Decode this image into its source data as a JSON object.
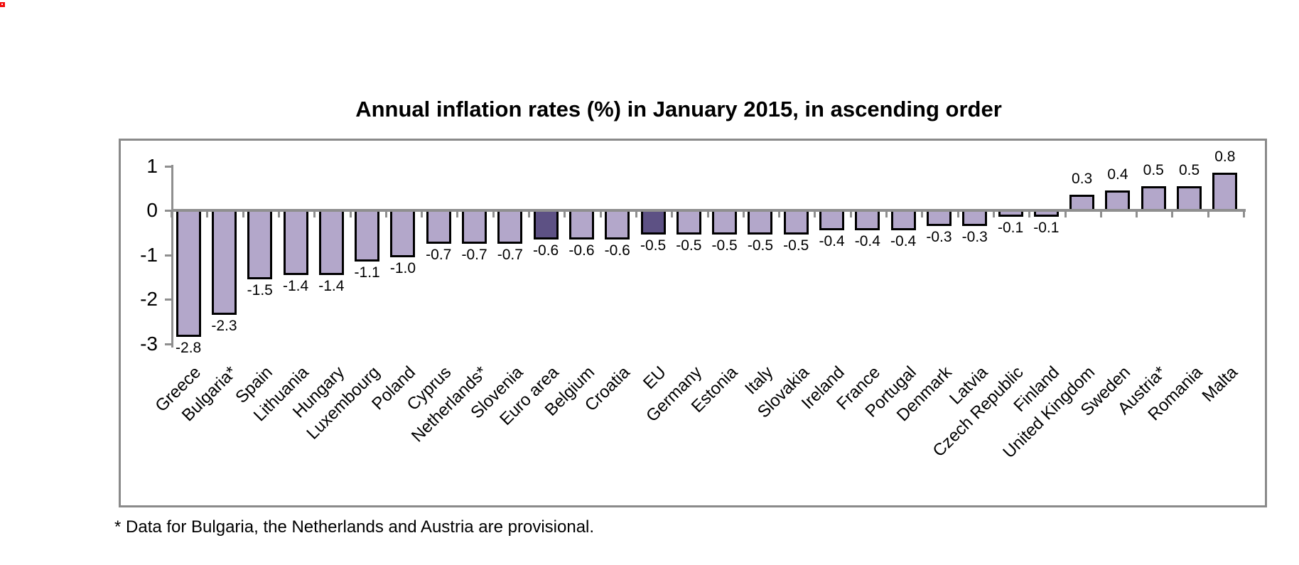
{
  "page": {
    "title": "Annual inflation rates (%) in January 2015, in ascending order",
    "footnote": "* Data for Bulgaria, the Netherlands and Austria are provisional."
  },
  "chart_data": {
    "type": "bar",
    "title": "Annual inflation rates (%) in January 2015, in ascending order",
    "footnote": "* Data for Bulgaria, the Netherlands and Austria are provisional.",
    "categories": [
      "Greece",
      "Bulgaria*",
      "Spain",
      "Lithuania",
      "Hungary",
      "Luxembourg",
      "Poland",
      "Cyprus",
      "Netherlands*",
      "Slovenia",
      "Euro area",
      "Belgium",
      "Croatia",
      "EU",
      "Germany",
      "Estonia",
      "Italy",
      "Slovakia",
      "Ireland",
      "France",
      "Portugal",
      "Denmark",
      "Latvia",
      "Czech Republic",
      "Finland",
      "United Kingdom",
      "Sweden",
      "Austria*",
      "Romania",
      "Malta"
    ],
    "values": [
      -2.8,
      -2.3,
      -1.5,
      -1.4,
      -1.4,
      -1.1,
      -1.0,
      -0.7,
      -0.7,
      -0.7,
      -0.6,
      -0.6,
      -0.6,
      -0.5,
      -0.5,
      -0.5,
      -0.5,
      -0.5,
      -0.4,
      -0.4,
      -0.4,
      -0.3,
      -0.3,
      -0.1,
      -0.1,
      0.3,
      0.4,
      0.5,
      0.5,
      0.8
    ],
    "value_label_decimals": 1,
    "highlighted_categories": [
      "Euro area",
      "EU"
    ],
    "yticks": [
      1,
      0,
      -1,
      -2,
      -3
    ],
    "ylim": [
      -3,
      1
    ],
    "xlabel": "",
    "ylabel": "",
    "grid": false,
    "legend": false,
    "bar_orientation": "vertical",
    "category_label_rotation_deg": 45,
    "colors": {
      "bar_fill": "#b3a7ca",
      "bar_fill_highlight": "#5d5184",
      "bar_border": "#000000",
      "axis": "#8f8f8f",
      "frame_border": "#8a8a8a",
      "text": "#000000",
      "background": "#ffffff",
      "corner_artifact": "#f20d0d"
    }
  }
}
